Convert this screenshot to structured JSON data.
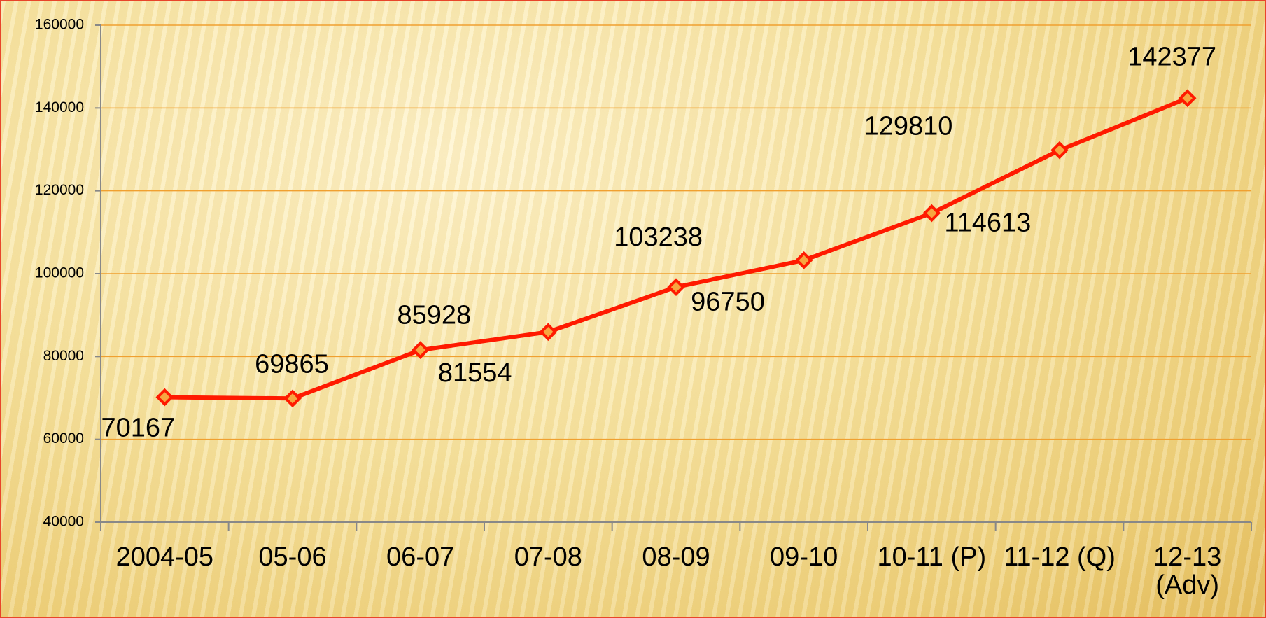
{
  "chart_data": {
    "type": "line",
    "categories": [
      "2004-05",
      "05-06",
      "06-07",
      "07-08",
      "08-09",
      "09-10",
      "10-11 (P)",
      "11-12 (Q)",
      "12-13\n(Adv)"
    ],
    "values": [
      70167,
      69865,
      81554,
      85928,
      96750,
      103238,
      114613,
      129810,
      142377
    ],
    "color": "#ff1a00",
    "ylim": [
      40000,
      160000
    ],
    "yticks": [
      40000,
      60000,
      80000,
      100000,
      120000,
      140000,
      160000
    ],
    "grid": true
  }
}
